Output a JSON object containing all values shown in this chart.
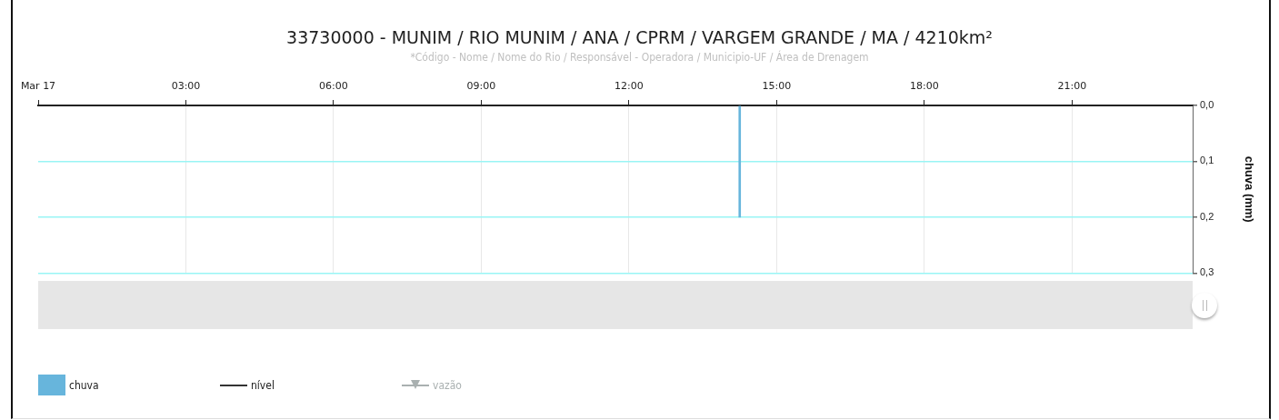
{
  "chart_data": {
    "type": "bar",
    "title": "33730000 - MUNIM / RIO MUNIM / ANA / CPRM / VARGEM GRANDE / MA / 4210km²",
    "subtitle": "*Código - Nome / Nome do Rio / Responsável - Operadora / Municipio-UF / Área de Drenagem",
    "ylabel": "chuva (mm)",
    "x": [
      14.25
    ],
    "series": [
      {
        "name": "chuva",
        "color": "#67b5dc",
        "values": [
          0.2
        ]
      },
      {
        "name": "nível",
        "type": "line",
        "color": "#333333",
        "values": [
          null
        ]
      },
      {
        "name": "vazão",
        "type": "line",
        "color": "#a9b0b0",
        "marker": "triangle",
        "values": [
          null
        ]
      }
    ],
    "xlim": [
      0,
      23.45
    ],
    "xticks": [
      {
        "value": 0,
        "label": "Mar 17"
      },
      {
        "value": 3,
        "label": "03:00"
      },
      {
        "value": 6,
        "label": "06:00"
      },
      {
        "value": 9,
        "label": "09:00"
      },
      {
        "value": 12,
        "label": "12:00"
      },
      {
        "value": 15,
        "label": "15:00"
      },
      {
        "value": 18,
        "label": "18:00"
      },
      {
        "value": 21,
        "label": "21:00"
      }
    ],
    "ylim": [
      0.3,
      0
    ],
    "yticks": [
      {
        "value": 0,
        "label": "0,0"
      },
      {
        "value": 0.1,
        "label": "0,1"
      },
      {
        "value": 0.2,
        "label": "0,2"
      },
      {
        "value": 0.3,
        "label": "0,3"
      }
    ],
    "grid": true,
    "legend": "bottom left"
  }
}
